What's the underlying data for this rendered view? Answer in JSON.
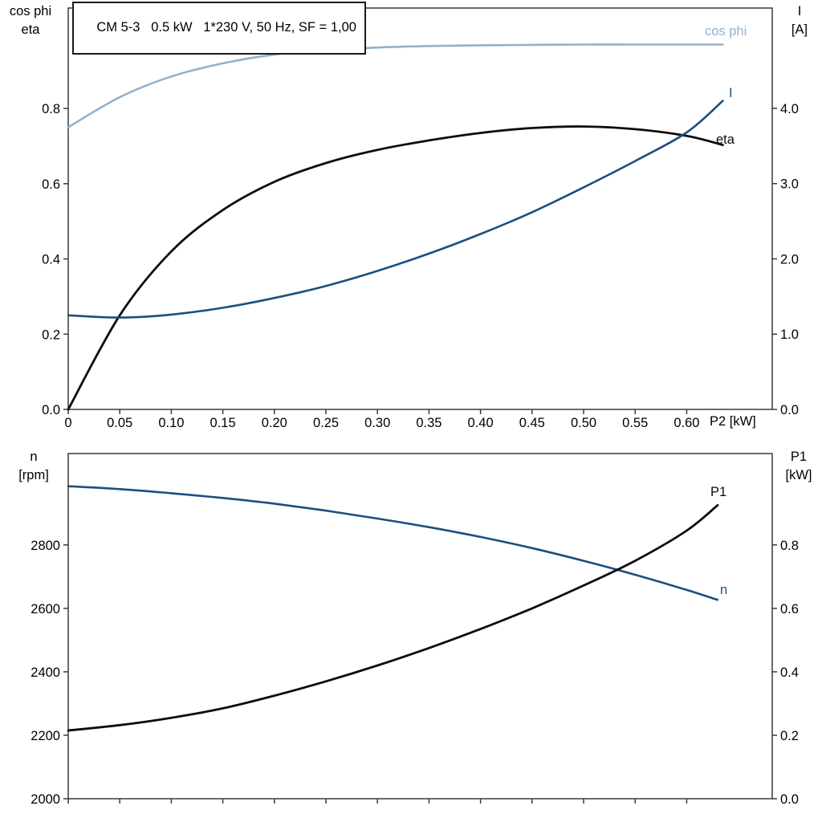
{
  "charts": [
    {
      "type": "line",
      "title": "CM 5-3   0.5 kW   1*230 V, 50 Hz, SF = 1,00",
      "left_axis": {
        "label_lines": [
          "cos phi",
          "eta"
        ],
        "tick_values": [
          0.0,
          0.2,
          0.4,
          0.6,
          0.8
        ],
        "tick_labels": [
          "0.0",
          "0.2",
          "0.4",
          "0.6",
          "0.8"
        ],
        "range": [
          0,
          1.067
        ]
      },
      "right_axis": {
        "label_lines": [
          "I",
          "[A]"
        ],
        "tick_values": [
          0.0,
          1.0,
          2.0,
          3.0,
          4.0
        ],
        "tick_labels": [
          "0.0",
          "1.0",
          "2.0",
          "3.0",
          "4.0"
        ],
        "range": [
          0,
          5.333
        ]
      },
      "x_axis": {
        "label": "P2 [kW]",
        "tick_values": [
          0,
          0.05,
          0.1,
          0.15,
          0.2,
          0.25,
          0.3,
          0.35,
          0.4,
          0.45,
          0.5,
          0.55,
          0.6
        ],
        "tick_labels": [
          "0",
          "0.05",
          "0.10",
          "0.15",
          "0.20",
          "0.25",
          "0.30",
          "0.35",
          "0.40",
          "0.45",
          "0.50",
          "0.55",
          "0.60"
        ],
        "range": [
          0,
          0.683
        ]
      },
      "x": [
        0,
        0.05,
        0.1,
        0.15,
        0.2,
        0.25,
        0.3,
        0.35,
        0.4,
        0.45,
        0.5,
        0.55,
        0.6,
        0.635
      ],
      "series": [
        {
          "name": "cos phi",
          "axis": "left",
          "color": "#93b1cd",
          "width": 2.6,
          "values": [
            0.75,
            0.83,
            0.885,
            0.92,
            0.943,
            0.955,
            0.962,
            0.966,
            0.968,
            0.969,
            0.97,
            0.97,
            0.97,
            0.97
          ]
        },
        {
          "name": "eta",
          "axis": "left",
          "color": "#0d0d0d",
          "width": 2.8,
          "values": [
            0.0,
            0.25,
            0.42,
            0.53,
            0.605,
            0.655,
            0.69,
            0.715,
            0.735,
            0.748,
            0.752,
            0.745,
            0.727,
            0.703
          ]
        },
        {
          "name": "I",
          "axis": "right",
          "color": "#1d4f7e",
          "width": 2.6,
          "values": [
            1.25,
            1.22,
            1.26,
            1.35,
            1.48,
            1.64,
            1.84,
            2.07,
            2.33,
            2.62,
            2.95,
            3.3,
            3.68,
            4.1
          ]
        }
      ]
    },
    {
      "type": "line",
      "left_axis": {
        "label_lines": [
          "n",
          "[rpm]"
        ],
        "tick_values": [
          2000,
          2200,
          2400,
          2600,
          2800
        ],
        "tick_labels": [
          "2000",
          "2200",
          "2400",
          "2600",
          "2800"
        ],
        "range": [
          2000,
          3088
        ]
      },
      "right_axis": {
        "label_lines": [
          "P1",
          "[kW]"
        ],
        "tick_values": [
          0.0,
          0.2,
          0.4,
          0.6,
          0.8
        ],
        "tick_labels": [
          "0.0",
          "0.2",
          "0.4",
          "0.6",
          "0.8"
        ],
        "range": [
          0,
          1.088
        ]
      },
      "x_axis": {
        "label": "",
        "tick_values": [
          0,
          0.05,
          0.1,
          0.15,
          0.2,
          0.25,
          0.3,
          0.35,
          0.4,
          0.45,
          0.5,
          0.55,
          0.6
        ],
        "tick_labels": [],
        "range": [
          0,
          0.683
        ]
      },
      "x": [
        0,
        0.05,
        0.1,
        0.15,
        0.2,
        0.25,
        0.3,
        0.35,
        0.4,
        0.45,
        0.5,
        0.55,
        0.6,
        0.63
      ],
      "series": [
        {
          "name": "n",
          "axis": "left",
          "color": "#1d4f7e",
          "width": 2.6,
          "values": [
            2985,
            2976,
            2963,
            2948,
            2930,
            2908,
            2883,
            2856,
            2825,
            2790,
            2750,
            2706,
            2658,
            2627
          ]
        },
        {
          "name": "P1",
          "axis": "right",
          "color": "#0d0d0d",
          "width": 2.8,
          "values": [
            0.215,
            0.232,
            0.255,
            0.285,
            0.325,
            0.37,
            0.42,
            0.475,
            0.535,
            0.6,
            0.672,
            0.75,
            0.845,
            0.925
          ]
        }
      ]
    }
  ],
  "chart_data": [
    {
      "type": "line",
      "title": "CM 5-3   0.5 kW   1*230 V, 50 Hz, SF = 1,00",
      "xlabel": "P2 [kW]",
      "x_range": [
        0,
        0.65
      ],
      "left_axis": {
        "label": "cos phi / eta",
        "ticks": [
          0.0,
          0.2,
          0.4,
          0.6,
          0.8
        ]
      },
      "right_axis": {
        "label": "I [A]",
        "ticks": [
          0.0,
          1.0,
          2.0,
          3.0,
          4.0
        ]
      },
      "x": [
        0,
        0.05,
        0.1,
        0.15,
        0.2,
        0.25,
        0.3,
        0.35,
        0.4,
        0.45,
        0.5,
        0.55,
        0.6,
        0.635
      ],
      "series": [
        {
          "name": "cos phi",
          "values": [
            0.75,
            0.83,
            0.885,
            0.92,
            0.943,
            0.955,
            0.962,
            0.966,
            0.968,
            0.969,
            0.97,
            0.97,
            0.97,
            0.97
          ]
        },
        {
          "name": "eta",
          "values": [
            0.0,
            0.25,
            0.42,
            0.53,
            0.605,
            0.655,
            0.69,
            0.715,
            0.735,
            0.748,
            0.752,
            0.745,
            0.727,
            0.703
          ]
        },
        {
          "name": "I [A]",
          "values": [
            1.25,
            1.22,
            1.26,
            1.35,
            1.48,
            1.64,
            1.84,
            2.07,
            2.33,
            2.62,
            2.95,
            3.3,
            3.68,
            4.1
          ]
        }
      ],
      "grid": false,
      "legend": "curve labels at line ends"
    },
    {
      "type": "line",
      "left_axis": {
        "label": "n [rpm]",
        "ticks": [
          2000,
          2200,
          2400,
          2600,
          2800
        ]
      },
      "right_axis": {
        "label": "P1 [kW]",
        "ticks": [
          0.0,
          0.2,
          0.4,
          0.6,
          0.8
        ]
      },
      "x": [
        0,
        0.05,
        0.1,
        0.15,
        0.2,
        0.25,
        0.3,
        0.35,
        0.4,
        0.45,
        0.5,
        0.55,
        0.6,
        0.63
      ],
      "series": [
        {
          "name": "n [rpm]",
          "values": [
            2985,
            2976,
            2963,
            2948,
            2930,
            2908,
            2883,
            2856,
            2825,
            2790,
            2750,
            2706,
            2658,
            2627
          ]
        },
        {
          "name": "P1 [kW]",
          "values": [
            0.215,
            0.232,
            0.255,
            0.285,
            0.325,
            0.37,
            0.42,
            0.475,
            0.535,
            0.6,
            0.672,
            0.75,
            0.845,
            0.925
          ]
        }
      ],
      "grid": false,
      "legend": "curve labels at line ends"
    }
  ]
}
